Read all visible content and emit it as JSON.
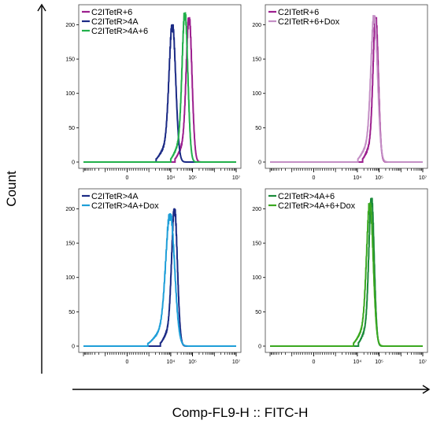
{
  "figure": {
    "ylabel": "Count",
    "xlabel": "Comp-FL9-H :: FITC-H"
  },
  "colors": {
    "C2ITetR+6": "#9c1f8e",
    "C2ITetR>4A": "#1b2a85",
    "C2ITetR>4A+6": "#22b04b",
    "C2ITetR+6+Dox": "#c48fc5",
    "C2ITetR>4A+Dox": "#1e9ed8",
    "C2ITetR>4A+6+Dox": "#3aa820"
  },
  "chart_data": [
    {
      "type": "area",
      "panel": "top-left",
      "x_scale": "log",
      "xlim": [
        -10000,
        10000000
      ],
      "ylim": [
        0,
        220
      ],
      "y_ticks": [
        0,
        50,
        100,
        150,
        200
      ],
      "x_ticks": [
        "0",
        "10⁴",
        "10⁵",
        "10⁷"
      ],
      "x_tick_values": [
        0,
        10000,
        100000,
        10000000
      ],
      "legend": "top-left",
      "grid": false,
      "series": [
        {
          "name": "C2ITetR+6",
          "color": "#9c1f8e",
          "peak_x": 70000,
          "peak_y": 205,
          "width": 0.13
        },
        {
          "name": "C2ITetR>4A",
          "color": "#1b2a85",
          "peak_x": 12000,
          "peak_y": 195,
          "width": 0.15
        },
        {
          "name": "C2ITetR>4A+6",
          "color": "#22b04b",
          "peak_x": 45000,
          "peak_y": 212,
          "width": 0.13
        }
      ]
    },
    {
      "type": "area",
      "panel": "top-right",
      "x_scale": "log",
      "xlim": [
        -10000,
        10000000
      ],
      "ylim": [
        0,
        220
      ],
      "y_ticks": [
        0,
        50,
        100,
        150,
        200
      ],
      "x_ticks": [
        "0",
        "10⁴",
        "10⁵",
        "10⁷"
      ],
      "x_tick_values": [
        0,
        10000,
        100000,
        10000000
      ],
      "legend": "top-left",
      "grid": false,
      "series": [
        {
          "name": "C2ITetR+6",
          "color": "#9c1f8e",
          "peak_x": 70000,
          "peak_y": 205,
          "width": 0.12
        },
        {
          "name": "C2ITetR+6+Dox",
          "color": "#c48fc5",
          "peak_x": 60000,
          "peak_y": 208,
          "width": 0.15
        }
      ]
    },
    {
      "type": "area",
      "panel": "bottom-left",
      "x_scale": "log",
      "xlim": [
        -10000,
        10000000
      ],
      "ylim": [
        0,
        220
      ],
      "y_ticks": [
        0,
        50,
        100,
        150,
        200
      ],
      "x_ticks": [
        "0",
        "10⁴",
        "10⁵",
        "10⁷"
      ],
      "x_tick_values": [
        0,
        10000,
        100000,
        10000000
      ],
      "legend": "top-left",
      "grid": false,
      "series": [
        {
          "name": "C2ITetR>4A",
          "color": "#1b2a85",
          "peak_x": 15000,
          "peak_y": 195,
          "width": 0.13
        },
        {
          "name": "C2ITetR>4A+Dox",
          "color": "#1e9ed8",
          "peak_x": 9500,
          "peak_y": 188,
          "width": 0.2
        }
      ]
    },
    {
      "type": "area",
      "panel": "bottom-right",
      "x_scale": "log",
      "xlim": [
        -10000,
        10000000
      ],
      "ylim": [
        0,
        220
      ],
      "y_ticks": [
        0,
        50,
        100,
        150,
        200
      ],
      "x_ticks": [
        "0",
        "10⁴",
        "10⁵",
        "10⁷"
      ],
      "x_tick_values": [
        0,
        10000,
        100000,
        10000000
      ],
      "legend": "top-left",
      "grid": false,
      "series": [
        {
          "name": "C2ITetR>4A+6",
          "color": "#1a8a3a",
          "peak_x": 45000,
          "peak_y": 210,
          "width": 0.12
        },
        {
          "name": "C2ITetR>4A+6+Dox",
          "color": "#3aa820",
          "peak_x": 38000,
          "peak_y": 203,
          "width": 0.15
        }
      ]
    }
  ]
}
